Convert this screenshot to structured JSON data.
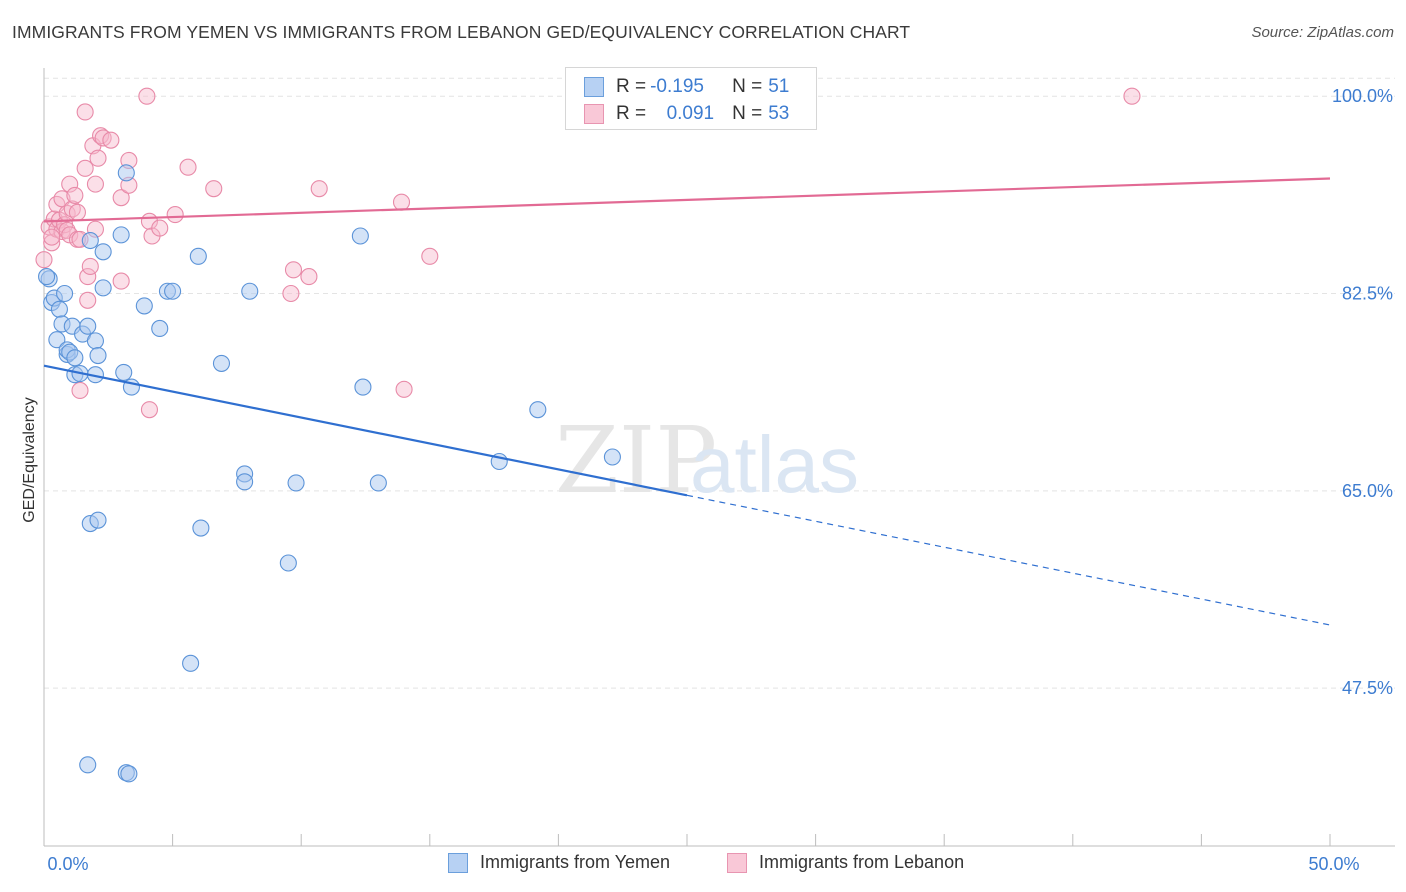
{
  "header": {
    "title": "IMMIGRANTS FROM YEMEN VS IMMIGRANTS FROM LEBANON GED/EQUIVALENCY CORRELATION CHART",
    "source": "Source: ZipAtlas.com"
  },
  "watermark": {
    "zip": "ZIP",
    "atlas": "atlas"
  },
  "legend": {
    "yemen": {
      "r_label": "R = ",
      "r_value": "-0.195",
      "n_label": "N = ",
      "n_value": "51"
    },
    "lebanon": {
      "r_label": "R = ",
      "r_value": "0.091",
      "n_label": "N = ",
      "n_value": "53"
    }
  },
  "bottom_legend": {
    "yemen": "Immigrants from Yemen",
    "lebanon": "Immigrants from Lebanon"
  },
  "colors": {
    "yemen_fill": "#a9c8f0",
    "yemen_stroke": "#5b93d8",
    "yemen_line": "#2f6fd0",
    "lebanon_fill": "#f6b8cb",
    "lebanon_stroke": "#e88aa8",
    "lebanon_line": "#e26a94",
    "tick_label": "#3d7cd0",
    "grid": "#e4e4e4"
  },
  "chart_data": {
    "type": "scatter",
    "title": "IMMIGRANTS FROM YEMEN VS IMMIGRANTS FROM LEBANON GED/EQUIVALENCY CORRELATION CHART",
    "xlabel": "",
    "ylabel": "GED/Equivalency",
    "xlim": [
      0,
      50
    ],
    "ylim": [
      33.5,
      102.5
    ],
    "x_tick_labels": [
      {
        "value": 0,
        "label": "0.0%"
      },
      {
        "value": 50,
        "label": "50.0%"
      }
    ],
    "y_ticks": [
      {
        "value": 100.0,
        "label": "100.0%"
      },
      {
        "value": 82.5,
        "label": "82.5%"
      },
      {
        "value": 65.0,
        "label": "65.0%"
      },
      {
        "value": 47.5,
        "label": "47.5%"
      }
    ],
    "grid": true,
    "legend_position": "top-center",
    "series": [
      {
        "name": "Immigrants from Yemen",
        "color": "#a9c8f0",
        "R": -0.195,
        "N": 51,
        "trend": {
          "x": [
            0,
            25
          ],
          "y": [
            76.1,
            64.6
          ],
          "dashed_to": [
            50,
            53.1
          ]
        },
        "points": [
          [
            0.2,
            83.8
          ],
          [
            0.3,
            81.7
          ],
          [
            0.4,
            82.1
          ],
          [
            0.5,
            78.4
          ],
          [
            0.6,
            81.1
          ],
          [
            0.7,
            79.8
          ],
          [
            0.8,
            82.5
          ],
          [
            0.9,
            77.1
          ],
          [
            0.9,
            77.5
          ],
          [
            1.0,
            77.3
          ],
          [
            1.1,
            79.6
          ],
          [
            1.2,
            76.8
          ],
          [
            1.2,
            75.3
          ],
          [
            1.4,
            75.4
          ],
          [
            1.5,
            78.9
          ],
          [
            1.7,
            79.6
          ],
          [
            1.8,
            87.2
          ],
          [
            1.8,
            62.1
          ],
          [
            2.0,
            78.3
          ],
          [
            2.0,
            75.3
          ],
          [
            2.1,
            77.0
          ],
          [
            2.1,
            62.4
          ],
          [
            2.3,
            86.2
          ],
          [
            2.3,
            83.0
          ],
          [
            1.7,
            40.7
          ],
          [
            3.0,
            87.7
          ],
          [
            3.1,
            75.5
          ],
          [
            3.2,
            93.2
          ],
          [
            3.2,
            40.0
          ],
          [
            3.3,
            39.9
          ],
          [
            3.4,
            74.2
          ],
          [
            3.9,
            81.4
          ],
          [
            4.5,
            79.4
          ],
          [
            4.8,
            82.7
          ],
          [
            5.0,
            82.7
          ],
          [
            5.7,
            49.7
          ],
          [
            6.0,
            85.8
          ],
          [
            6.1,
            61.7
          ],
          [
            6.9,
            76.3
          ],
          [
            7.8,
            66.5
          ],
          [
            7.8,
            65.8
          ],
          [
            8.0,
            82.7
          ],
          [
            9.5,
            58.6
          ],
          [
            9.8,
            65.7
          ],
          [
            12.3,
            87.6
          ],
          [
            12.4,
            74.2
          ],
          [
            13.0,
            65.7
          ],
          [
            17.7,
            67.6
          ],
          [
            19.2,
            72.2
          ],
          [
            22.1,
            68.0
          ],
          [
            0.1,
            84.0
          ]
        ]
      },
      {
        "name": "Immigrants from Lebanon",
        "color": "#f6b8cb",
        "R": 0.091,
        "N": 53,
        "trend": {
          "x": [
            0,
            50
          ],
          "y": [
            88.9,
            92.7
          ]
        },
        "points": [
          [
            0.0,
            85.5
          ],
          [
            0.2,
            88.4
          ],
          [
            0.3,
            87.0
          ],
          [
            0.4,
            89.1
          ],
          [
            0.5,
            90.4
          ],
          [
            0.5,
            88.2
          ],
          [
            0.6,
            89.0
          ],
          [
            0.7,
            88.0
          ],
          [
            0.7,
            90.9
          ],
          [
            0.8,
            88.6
          ],
          [
            0.9,
            88.1
          ],
          [
            0.9,
            89.6
          ],
          [
            1.0,
            92.2
          ],
          [
            1.0,
            87.7
          ],
          [
            1.1,
            90.0
          ],
          [
            1.2,
            91.2
          ],
          [
            1.3,
            87.3
          ],
          [
            1.3,
            89.7
          ],
          [
            1.4,
            87.3
          ],
          [
            1.4,
            73.9
          ],
          [
            1.6,
            93.6
          ],
          [
            1.6,
            98.6
          ],
          [
            1.7,
            84.0
          ],
          [
            1.7,
            81.9
          ],
          [
            1.8,
            84.9
          ],
          [
            1.9,
            95.6
          ],
          [
            2.0,
            88.2
          ],
          [
            2.0,
            92.2
          ],
          [
            2.1,
            94.5
          ],
          [
            2.2,
            96.5
          ],
          [
            2.3,
            96.3
          ],
          [
            2.6,
            96.1
          ],
          [
            3.0,
            91.0
          ],
          [
            3.0,
            83.6
          ],
          [
            3.3,
            92.1
          ],
          [
            3.3,
            94.3
          ],
          [
            4.0,
            100.0
          ],
          [
            4.1,
            88.9
          ],
          [
            4.1,
            72.2
          ],
          [
            4.2,
            87.6
          ],
          [
            4.5,
            88.3
          ],
          [
            5.1,
            89.5
          ],
          [
            5.6,
            93.7
          ],
          [
            6.6,
            91.8
          ],
          [
            9.6,
            82.5
          ],
          [
            9.7,
            84.6
          ],
          [
            10.3,
            84.0
          ],
          [
            10.7,
            91.8
          ],
          [
            13.9,
            90.6
          ],
          [
            14.0,
            74.0
          ],
          [
            15.0,
            85.8
          ],
          [
            42.3,
            100.0
          ],
          [
            0.3,
            87.5
          ]
        ]
      }
    ]
  }
}
